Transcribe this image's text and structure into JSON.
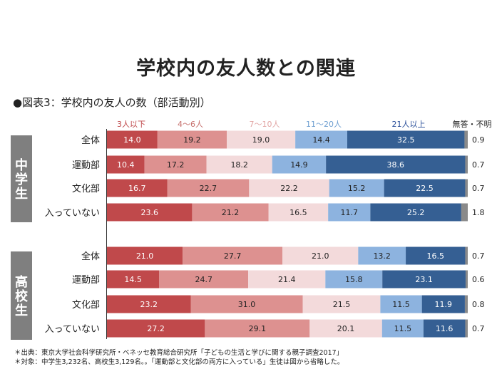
{
  "title": "学校内の友人数との関連",
  "subtitle": "●図表3：学校内の友人の数（部活動別）",
  "notes": [
    "＊出典：東京大学社会科学研究所・ベネッセ教育総合研究所「子どもの生活と学びに関する親子調査2017」",
    "＊対象：中学生3,232名、高校生3,129名。。「運動部と文化部の両方に入っている」生徒は図から省略した。"
  ],
  "chart_data": {
    "type": "bar",
    "orientation": "horizontal",
    "stacked": true,
    "unit": "%",
    "categories_legend": [
      "3人以下",
      "4〜6人",
      "7〜10人",
      "11〜20人",
      "21人以上",
      "無答・不明"
    ],
    "colors": [
      "#c0494b",
      "#dd9190",
      "#f3dadb",
      "#8db3df",
      "#355f93",
      "#8a8a8a"
    ],
    "legend_colors": [
      "#c0494b",
      "#c66f6c",
      "#e2a6a5",
      "#6f9fd1",
      "#2a4f9a",
      "#222222"
    ],
    "label_colors": [
      "#ffffff",
      "#222222",
      "#222222",
      "#222222",
      "#ffffff"
    ],
    "groups": [
      {
        "name": "中学生",
        "rows": [
          {
            "label": "全体",
            "values": [
              14.0,
              19.2,
              19.0,
              14.4,
              32.5,
              0.9
            ]
          },
          {
            "label": "運動部",
            "values": [
              10.4,
              17.2,
              18.2,
              14.9,
              38.6,
              0.7
            ]
          },
          {
            "label": "文化部",
            "values": [
              16.7,
              22.7,
              22.2,
              15.2,
              22.5,
              0.7
            ]
          },
          {
            "label": "入っていない",
            "values": [
              23.6,
              21.2,
              16.5,
              11.7,
              25.2,
              1.8
            ]
          }
        ]
      },
      {
        "name": "高校生",
        "rows": [
          {
            "label": "全体",
            "values": [
              21.0,
              27.7,
              21.0,
              13.2,
              16.5,
              0.7
            ]
          },
          {
            "label": "運動部",
            "values": [
              14.5,
              24.7,
              21.4,
              15.8,
              23.1,
              0.6
            ]
          },
          {
            "label": "文化部",
            "values": [
              23.2,
              31.0,
              21.5,
              11.5,
              11.9,
              0.8
            ]
          },
          {
            "label": "入っていない",
            "values": [
              27.2,
              29.1,
              20.1,
              11.5,
              11.6,
              0.7
            ]
          }
        ]
      }
    ],
    "xlim": [
      0,
      100
    ]
  }
}
